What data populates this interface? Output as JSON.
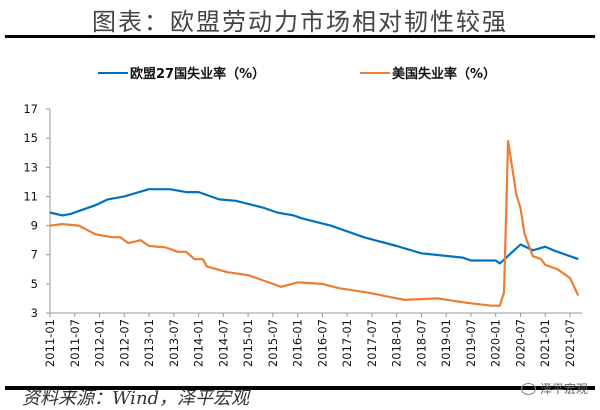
{
  "title": "图表：欧盟劳动力市场相对韧性较强",
  "source": "资料来源：Wind，泽平宏观",
  "watermark": "泽平宏观",
  "chart_data": {
    "type": "line",
    "title": "",
    "xlabel": "",
    "ylabel": "",
    "ylim": [
      3,
      17
    ],
    "yticks": [
      "3",
      "5",
      "7",
      "9",
      "11",
      "13",
      "15",
      "17"
    ],
    "xticks": [
      "2011-01",
      "2011-07",
      "2012-01",
      "2012-07",
      "2013-01",
      "2013-07",
      "2014-01",
      "2014-07",
      "2015-01",
      "2015-07",
      "2016-01",
      "2016-07",
      "2017-01",
      "2017-07",
      "2018-01",
      "2018-07",
      "2019-01",
      "2019-07",
      "2020-01",
      "2020-07",
      "2021-01",
      "2021-07"
    ],
    "xlim": [
      "2011-01",
      "2021-09"
    ],
    "grid": false,
    "legend": "top",
    "series": [
      {
        "name": "欧盟27国失业率（%）",
        "color": "#0070c0",
        "points": [
          [
            "2011-01",
            9.9
          ],
          [
            "2011-04",
            9.7
          ],
          [
            "2011-06",
            9.8
          ],
          [
            "2011-12",
            10.4
          ],
          [
            "2012-03",
            10.8
          ],
          [
            "2012-07",
            11.0
          ],
          [
            "2013-01",
            11.5
          ],
          [
            "2013-06",
            11.5
          ],
          [
            "2013-10",
            11.3
          ],
          [
            "2014-01",
            11.3
          ],
          [
            "2014-06",
            10.8
          ],
          [
            "2014-10",
            10.7
          ],
          [
            "2015-05",
            10.2
          ],
          [
            "2015-08",
            9.9
          ],
          [
            "2015-12",
            9.7
          ],
          [
            "2016-02",
            9.5
          ],
          [
            "2016-09",
            9.0
          ],
          [
            "2017-05",
            8.2
          ],
          [
            "2018-01",
            7.6
          ],
          [
            "2018-07",
            7.1
          ],
          [
            "2019-05",
            6.8
          ],
          [
            "2019-07",
            6.6
          ],
          [
            "2020-01",
            6.6
          ],
          [
            "2020-02",
            6.4
          ],
          [
            "2020-07",
            7.7
          ],
          [
            "2020-10",
            7.3
          ],
          [
            "2021-01",
            7.55
          ],
          [
            "2021-03",
            7.3
          ],
          [
            "2021-07",
            6.9
          ],
          [
            "2021-09",
            6.7
          ]
        ]
      },
      {
        "name": "美国失业率（%）",
        "color": "#ed7d31",
        "points": [
          [
            "2011-01",
            9.0
          ],
          [
            "2011-04",
            9.1
          ],
          [
            "2011-08",
            9.0
          ],
          [
            "2011-12",
            8.4
          ],
          [
            "2012-04",
            8.2
          ],
          [
            "2012-06",
            8.2
          ],
          [
            "2012-08",
            7.8
          ],
          [
            "2012-11",
            8.0
          ],
          [
            "2013-01",
            7.6
          ],
          [
            "2013-05",
            7.5
          ],
          [
            "2013-08",
            7.2
          ],
          [
            "2013-10",
            7.2
          ],
          [
            "2013-12",
            6.7
          ],
          [
            "2014-02",
            6.7
          ],
          [
            "2014-03",
            6.2
          ],
          [
            "2014-08",
            5.8
          ],
          [
            "2015-01",
            5.6
          ],
          [
            "2015-06",
            5.1
          ],
          [
            "2015-09",
            4.8
          ],
          [
            "2016-01",
            5.1
          ],
          [
            "2016-07",
            5.0
          ],
          [
            "2016-11",
            4.7
          ],
          [
            "2017-06",
            4.4
          ],
          [
            "2018-03",
            3.9
          ],
          [
            "2018-11",
            4.0
          ],
          [
            "2019-06",
            3.7
          ],
          [
            "2019-12",
            3.5
          ],
          [
            "2020-02",
            3.5
          ],
          [
            "2020-03",
            4.4
          ],
          [
            "2020-04",
            14.8
          ],
          [
            "2020-06",
            11.1
          ],
          [
            "2020-07",
            10.2
          ],
          [
            "2020-08",
            8.4
          ],
          [
            "2020-10",
            6.9
          ],
          [
            "2020-12",
            6.7
          ],
          [
            "2021-01",
            6.3
          ],
          [
            "2021-04",
            6.0
          ],
          [
            "2021-07",
            5.4
          ],
          [
            "2021-09",
            4.2
          ]
        ]
      }
    ]
  }
}
